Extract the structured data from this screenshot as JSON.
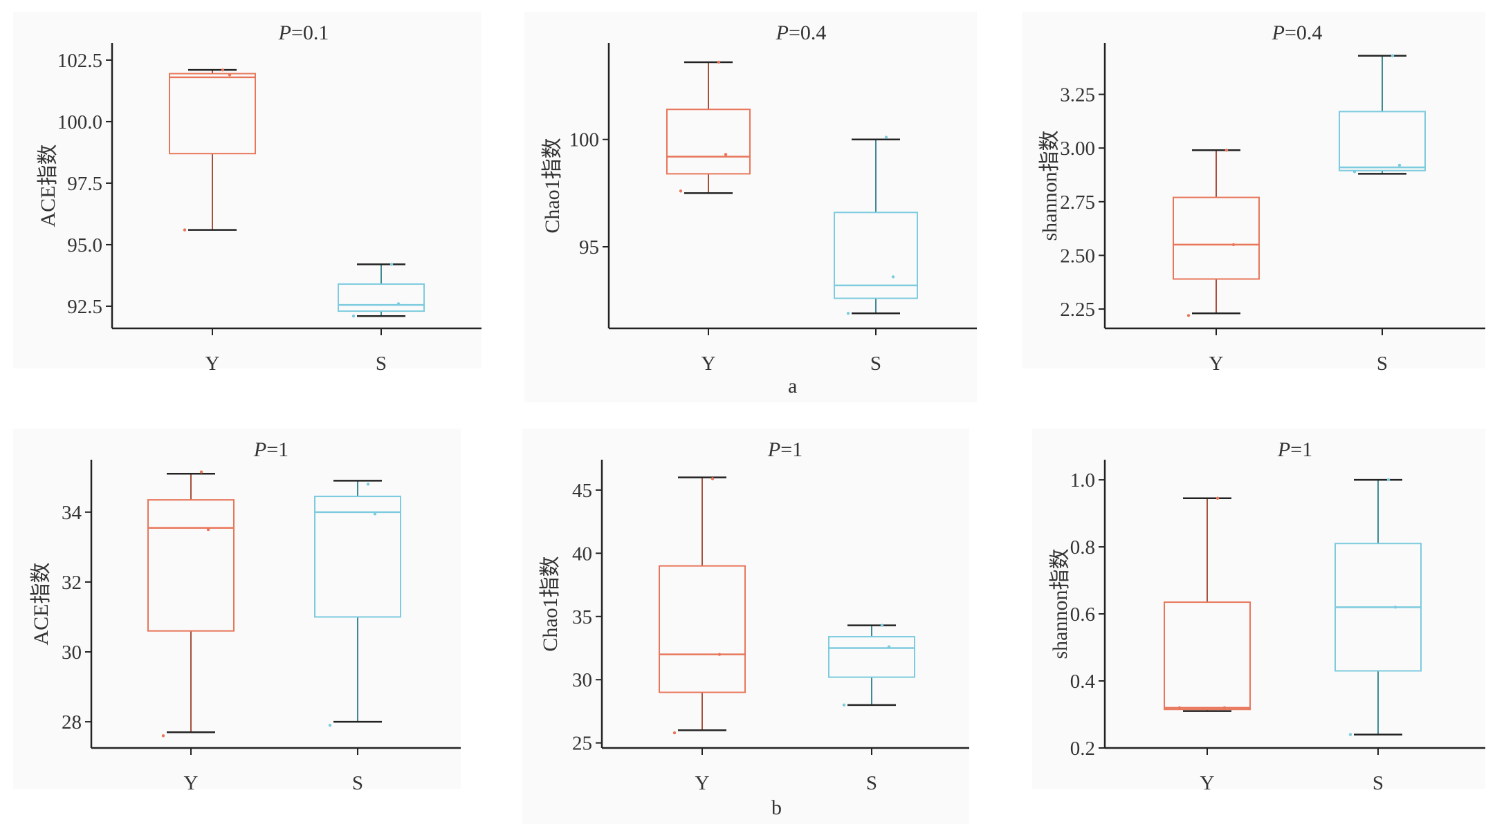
{
  "colors": {
    "Y": "#e8765a",
    "Y_whisker": "#a5503c",
    "S": "#7ccbde",
    "S_whisker": "#3e8a94",
    "axis": "#222222"
  },
  "subfigure_labels": {
    "a": "a",
    "b": "b"
  },
  "chart_data": [
    {
      "type": "box",
      "title": "P=0.1",
      "title_p": "P",
      "title_val": "=0.1",
      "ylabel": "ACE指数",
      "ylim": [
        91.6,
        103.2
      ],
      "yticks": [
        92.5,
        95.0,
        97.5,
        100.0,
        102.5
      ],
      "ytick_labels": [
        "92.5",
        "95.0",
        "97.5",
        "100.0",
        "102.5"
      ],
      "categories": [
        "Y",
        "S"
      ],
      "boxes": [
        {
          "group": "Y",
          "whisker_low": 95.6,
          "q1": 98.7,
          "median": 101.8,
          "q3": 101.95,
          "whisker_high": 102.1,
          "points": [
            95.6,
            101.9,
            102.1
          ]
        },
        {
          "group": "S",
          "whisker_low": 92.1,
          "q1": 92.3,
          "median": 92.55,
          "q3": 93.4,
          "whisker_high": 94.2,
          "points": [
            92.1,
            92.6,
            94.2
          ]
        }
      ]
    },
    {
      "type": "box",
      "title": "P=0.4",
      "title_p": "P",
      "title_val": "=0.4",
      "ylabel": "Chao1指数",
      "ylim": [
        91.2,
        104.5
      ],
      "yticks": [
        95,
        100
      ],
      "ytick_labels": [
        "95",
        "100"
      ],
      "categories": [
        "Y",
        "S"
      ],
      "boxes": [
        {
          "group": "Y",
          "whisker_low": 97.5,
          "q1": 98.4,
          "median": 99.2,
          "q3": 101.4,
          "whisker_high": 103.6,
          "points": [
            97.6,
            99.3,
            103.6
          ]
        },
        {
          "group": "S",
          "whisker_low": 91.9,
          "q1": 92.6,
          "median": 93.2,
          "q3": 96.6,
          "whisker_high": 100.0,
          "points": [
            91.9,
            93.6,
            100.1
          ]
        }
      ]
    },
    {
      "type": "box",
      "title": "P=0.4",
      "title_p": "P",
      "title_val": "=0.4",
      "ylabel": "shannon指数",
      "ylim": [
        2.16,
        3.49
      ],
      "yticks": [
        2.25,
        2.5,
        2.75,
        3.0,
        3.25
      ],
      "ytick_labels": [
        "2.25",
        "2.50",
        "2.75",
        "3.00",
        "3.25"
      ],
      "categories": [
        "Y",
        "S"
      ],
      "boxes": [
        {
          "group": "Y",
          "whisker_low": 2.23,
          "q1": 2.39,
          "median": 2.55,
          "q3": 2.77,
          "whisker_high": 2.99,
          "points": [
            2.22,
            2.55,
            2.99
          ]
        },
        {
          "group": "S",
          "whisker_low": 2.88,
          "q1": 2.895,
          "median": 2.91,
          "q3": 3.17,
          "whisker_high": 3.43,
          "points": [
            2.89,
            2.92,
            3.43
          ]
        }
      ]
    },
    {
      "type": "box",
      "title": "P=1",
      "title_p": "P",
      "title_val": "=1",
      "ylabel": "ACE指数",
      "ylim": [
        27.25,
        35.5
      ],
      "yticks": [
        28,
        30,
        32,
        34
      ],
      "ytick_labels": [
        "28",
        "30",
        "32",
        "34"
      ],
      "categories": [
        "Y",
        "S"
      ],
      "boxes": [
        {
          "group": "Y",
          "whisker_low": 27.7,
          "q1": 30.6,
          "median": 33.55,
          "q3": 34.35,
          "whisker_high": 35.1,
          "points": [
            27.6,
            33.5,
            35.15
          ]
        },
        {
          "group": "S",
          "whisker_low": 28.0,
          "q1": 31.0,
          "median": 34.0,
          "q3": 34.45,
          "whisker_high": 34.9,
          "points": [
            27.9,
            33.95,
            34.8
          ]
        }
      ]
    },
    {
      "type": "box",
      "title": "P=1",
      "title_p": "P",
      "title_val": "=1",
      "ylabel": "Chao1指数",
      "ylim": [
        24.6,
        47.4
      ],
      "yticks": [
        25,
        30,
        35,
        40,
        45
      ],
      "ytick_labels": [
        "25",
        "30",
        "35",
        "40",
        "45"
      ],
      "categories": [
        "Y",
        "S"
      ],
      "boxes": [
        {
          "group": "Y",
          "whisker_low": 26.0,
          "q1": 29.0,
          "median": 32.0,
          "q3": 39.0,
          "whisker_high": 46.0,
          "points": [
            25.8,
            32.0,
            45.9
          ]
        },
        {
          "group": "S",
          "whisker_low": 28.0,
          "q1": 30.2,
          "median": 32.5,
          "q3": 33.4,
          "whisker_high": 34.3,
          "points": [
            28.0,
            32.6,
            34.3
          ]
        }
      ]
    },
    {
      "type": "box",
      "title": "P=1",
      "title_p": "P",
      "title_val": "=1",
      "ylabel": "shannon指数",
      "ylim": [
        0.2,
        1.06
      ],
      "yticks": [
        0.2,
        0.4,
        0.6,
        0.8,
        1.0
      ],
      "ytick_labels": [
        "0.2",
        "0.4",
        "0.6",
        "0.8",
        "1.0"
      ],
      "categories": [
        "Y",
        "S"
      ],
      "boxes": [
        {
          "group": "Y",
          "whisker_low": 0.31,
          "q1": 0.315,
          "median": 0.32,
          "q3": 0.635,
          "whisker_high": 0.945,
          "points": [
            0.32,
            0.32,
            0.945
          ]
        },
        {
          "group": "S",
          "whisker_low": 0.24,
          "q1": 0.43,
          "median": 0.62,
          "q3": 0.81,
          "whisker_high": 1.0,
          "points": [
            0.24,
            0.62,
            1.0
          ]
        }
      ]
    }
  ]
}
